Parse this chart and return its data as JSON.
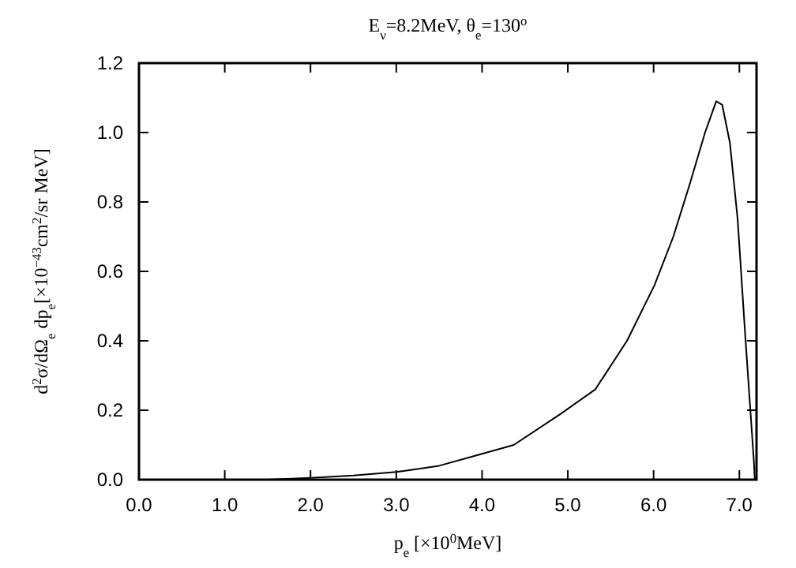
{
  "chart_data": {
    "type": "line",
    "title": "E$_{ν}$=8.2MeV, θ$_{e}$=130$^{o}$",
    "xlabel": "p$_{e}$ [×10$^{0}$MeV]",
    "ylabel": "d$^{2}$σ/dΩ$_{e}$ dp$_{e}$[×10$^{−43}$cm$^{2}$/sr MeV]",
    "x": [
      1.5,
      2.0,
      2.5,
      3.0,
      3.5,
      3.91,
      4.37,
      4.92,
      5.32,
      5.69,
      6.01,
      6.23,
      6.42,
      6.6,
      6.73,
      6.8,
      6.89,
      6.98,
      7.07,
      7.17,
      7.18
    ],
    "series": [
      {
        "color": "#000000",
        "values": [
          0,
          0.005,
          0.012,
          0.022,
          0.04,
          0.068,
          0.1,
          0.19,
          0.26,
          0.4,
          0.56,
          0.7,
          0.85,
          1.0,
          1.09,
          1.08,
          0.97,
          0.75,
          0.41,
          0.05,
          0
        ]
      }
    ],
    "xlim": [
      0,
      7.2
    ],
    "ylim": [
      0,
      1.2
    ],
    "xticks": [
      {
        "value": 0,
        "label": "0.0"
      },
      {
        "value": 1,
        "label": "1.0"
      },
      {
        "value": 2,
        "label": "2.0"
      },
      {
        "value": 3,
        "label": "3.0"
      },
      {
        "value": 4,
        "label": "4.0"
      },
      {
        "value": 5,
        "label": "5.0"
      },
      {
        "value": 6,
        "label": "6.0"
      },
      {
        "value": 7,
        "label": "7.0"
      }
    ],
    "yticks": [
      {
        "value": 0,
        "label": "0.0"
      },
      {
        "value": 0.2,
        "label": "0.2"
      },
      {
        "value": 0.4,
        "label": "0.4"
      },
      {
        "value": 0.6,
        "label": "0.6"
      },
      {
        "value": 0.8,
        "label": "0.8"
      },
      {
        "value": 1,
        "label": "1.0"
      },
      {
        "value": 1.2,
        "label": "1.2"
      }
    ],
    "marker": "none",
    "line_style": "solid"
  }
}
